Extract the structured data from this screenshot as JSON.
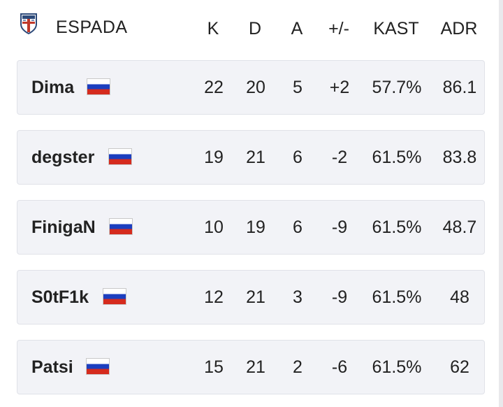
{
  "team": {
    "name": "ESPADA",
    "logo_icon": "espada-shield-logo"
  },
  "columns": {
    "k": "K",
    "d": "D",
    "a": "A",
    "pm": "+/-",
    "kast": "KAST",
    "adr": "ADR"
  },
  "flag": {
    "country": "Russia",
    "icon": "russia-flag-icon",
    "colors": [
      "#ffffff",
      "#1c3fbf",
      "#d52b1e"
    ]
  },
  "players": [
    {
      "name": "Dima",
      "k": "22",
      "d": "20",
      "a": "5",
      "pm": "+2",
      "kast": "57.7%",
      "adr": "86.1"
    },
    {
      "name": "degster",
      "k": "19",
      "d": "21",
      "a": "6",
      "pm": "-2",
      "kast": "61.5%",
      "adr": "83.8"
    },
    {
      "name": "FinigaN",
      "k": "10",
      "d": "19",
      "a": "6",
      "pm": "-9",
      "kast": "61.5%",
      "adr": "48.7"
    },
    {
      "name": "S0tF1k",
      "k": "12",
      "d": "21",
      "a": "3",
      "pm": "-9",
      "kast": "61.5%",
      "adr": "48"
    },
    {
      "name": "Patsi",
      "k": "15",
      "d": "21",
      "a": "2",
      "pm": "-6",
      "kast": "61.5%",
      "adr": "62"
    }
  ]
}
